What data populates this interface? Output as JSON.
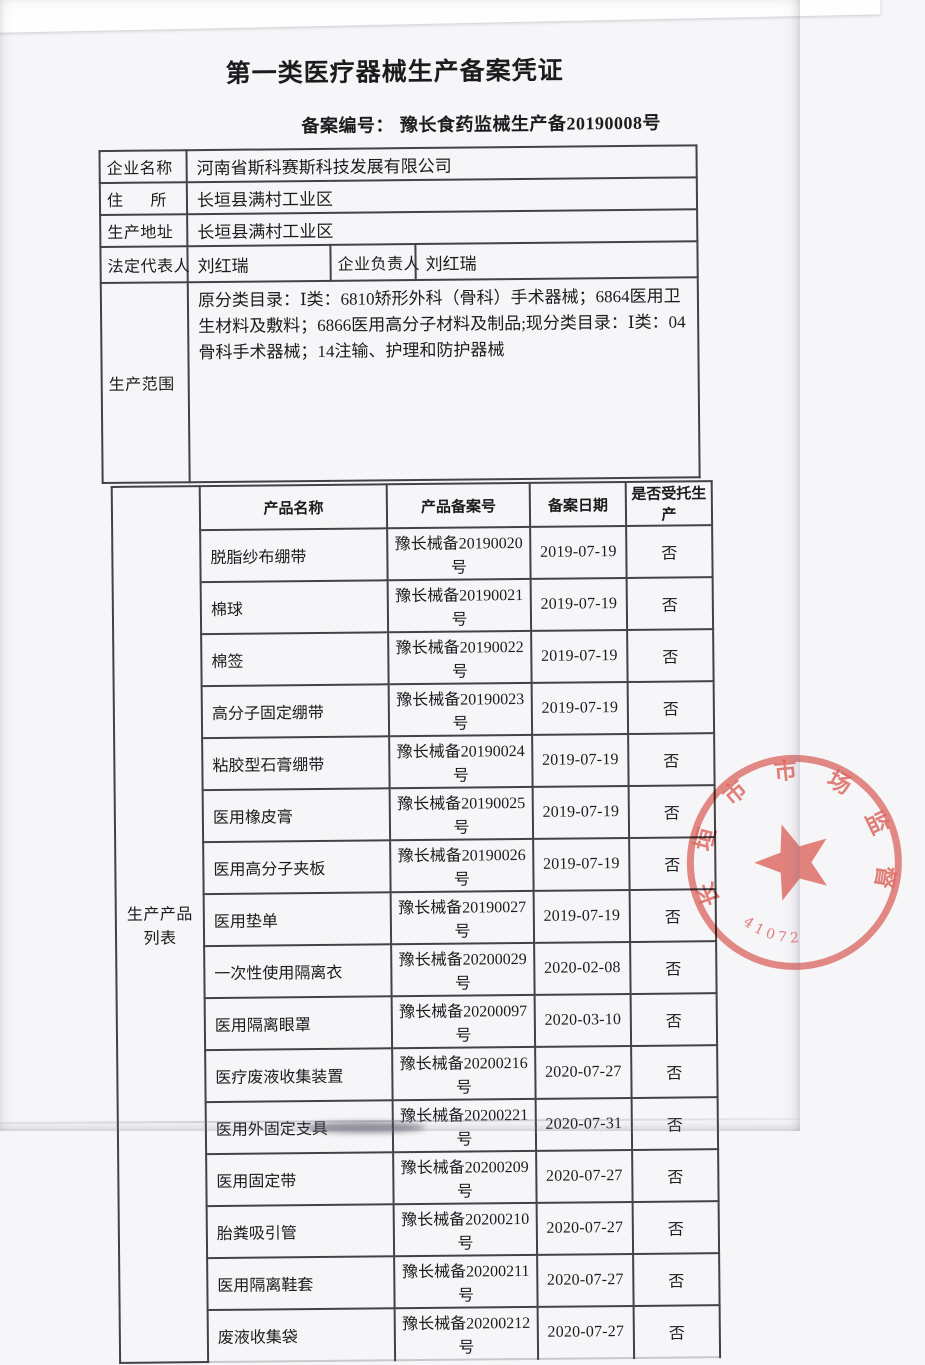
{
  "document": {
    "title": "第一类医疗器械生产备案凭证",
    "record_number_label": "备案编号：",
    "record_number": "豫长食药监械生产备20190008号"
  },
  "info_table": {
    "company_name_label": "企业名称",
    "company_name": "河南省斯科赛斯科技发展有限公司",
    "residence_label": "住      所",
    "residence": "长垣县满村工业区",
    "production_address_label": "生产地址",
    "production_address": "长垣县满村工业区",
    "legal_rep_label": "法定代表人",
    "legal_rep": "刘红瑞",
    "company_manager_label": "企业负责人",
    "company_manager": "刘红瑞",
    "production_scope_label": "生产范围",
    "production_scope": "原分类目录：Ⅰ类：6810矫形外科（骨科）手术器械；6864医用卫生材料及敷料；6866医用高分子材料及制品;现分类目录：Ⅰ类：04骨科手术器械；14注输、护理和防护器械"
  },
  "product_table": {
    "section_label": "生产产品列表",
    "headers": [
      "产品名称",
      "产品备案号",
      "备案日期",
      "是否受托生产"
    ],
    "rows": [
      {
        "name": "脱脂纱布绷带",
        "record_no": "豫长械备20190020号",
        "date": "2019-07-19",
        "entrusted": "否"
      },
      {
        "name": "棉球",
        "record_no": "豫长械备20190021号",
        "date": "2019-07-19",
        "entrusted": "否"
      },
      {
        "name": "棉签",
        "record_no": "豫长械备20190022号",
        "date": "2019-07-19",
        "entrusted": "否"
      },
      {
        "name": "高分子固定绷带",
        "record_no": "豫长械备20190023号",
        "date": "2019-07-19",
        "entrusted": "否"
      },
      {
        "name": "粘胶型石膏绷带",
        "record_no": "豫长械备20190024号",
        "date": "2019-07-19",
        "entrusted": "否"
      },
      {
        "name": "医用橡皮膏",
        "record_no": "豫长械备20190025号",
        "date": "2019-07-19",
        "entrusted": "否"
      },
      {
        "name": "医用高分子夹板",
        "record_no": "豫长械备20190026号",
        "date": "2019-07-19",
        "entrusted": "否"
      },
      {
        "name": "医用垫单",
        "record_no": "豫长械备20190027号",
        "date": "2019-07-19",
        "entrusted": "否"
      },
      {
        "name": "一次性使用隔离衣",
        "record_no": "豫长械备20200029号",
        "date": "2020-02-08",
        "entrusted": "否"
      },
      {
        "name": "医用隔离眼罩",
        "record_no": "豫长械备20200097号",
        "date": "2020-03-10",
        "entrusted": "否"
      },
      {
        "name": "医疗废液收集装置",
        "record_no": "豫长械备20200216号",
        "date": "2020-07-27",
        "entrusted": "否"
      },
      {
        "name": "医用外固定支具",
        "record_no": "豫长械备20200221号",
        "date": "2020-07-31",
        "entrusted": "否"
      },
      {
        "name": "医用固定带",
        "record_no": "豫长械备20200209号",
        "date": "2020-07-27",
        "entrusted": "否"
      },
      {
        "name": "胎粪吸引管",
        "record_no": "豫长械备20200210号",
        "date": "2020-07-27",
        "entrusted": "否"
      },
      {
        "name": "医用隔离鞋套",
        "record_no": "豫长械备20200211号",
        "date": "2020-07-27",
        "entrusted": "否"
      },
      {
        "name": "废液收集袋",
        "record_no": "豫长械备20200212号",
        "date": "2020-07-27",
        "entrusted": "否"
      }
    ]
  },
  "stamp": {
    "arc_text": "长垣市市场监督",
    "number": "41072",
    "color": "#d95a52"
  }
}
